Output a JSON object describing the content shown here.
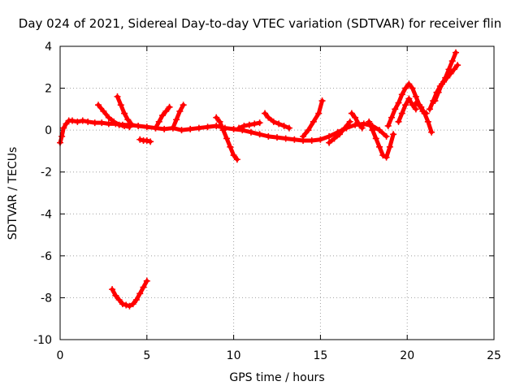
{
  "chart_data": {
    "type": "scatter",
    "title": "Day 024 of 2021, Sidereal Day-to-day VTEC variation (SDTVAR) for receiver flin",
    "xlabel": "GPS time / hours",
    "ylabel": "SDTVAR / TECUs",
    "xlim": [
      0,
      25
    ],
    "ylim": [
      -10,
      4
    ],
    "xticks": [
      0,
      5,
      10,
      15,
      20,
      25
    ],
    "yticks": [
      -10,
      -8,
      -6,
      -4,
      -2,
      0,
      2,
      4
    ],
    "grid": true,
    "marker": "+",
    "color": "#ff0000",
    "series": [
      {
        "x": [
          0.0,
          0.1,
          0.2,
          0.35,
          0.5,
          0.7,
          1.0,
          1.3,
          1.6,
          2.0,
          2.4,
          2.8,
          3.2,
          3.6,
          4.0,
          4.5,
          5.0,
          5.5,
          6.0,
          6.5,
          7.0,
          7.5,
          8.0,
          8.5,
          9.0,
          9.5,
          10.0,
          10.5,
          11.0,
          11.5,
          12.0,
          12.5,
          13.0,
          13.5,
          14.0,
          14.5,
          15.0,
          15.5,
          16.0,
          16.5,
          17.0,
          17.5,
          18.0,
          18.4,
          18.8
        ],
        "y": [
          -0.6,
          -0.3,
          0.1,
          0.3,
          0.45,
          0.45,
          0.4,
          0.45,
          0.4,
          0.35,
          0.35,
          0.3,
          0.3,
          0.25,
          0.25,
          0.2,
          0.15,
          0.1,
          0.05,
          0.1,
          0.0,
          0.05,
          0.1,
          0.15,
          0.2,
          0.1,
          0.05,
          0.0,
          -0.1,
          -0.2,
          -0.3,
          -0.35,
          -0.4,
          -0.45,
          -0.5,
          -0.5,
          -0.45,
          -0.3,
          -0.1,
          0.1,
          0.25,
          0.3,
          0.2,
          0.0,
          -0.3
        ]
      },
      {
        "x": [
          2.2,
          2.5,
          2.8,
          3.1,
          3.4,
          3.7,
          4.0
        ],
        "y": [
          1.2,
          0.9,
          0.6,
          0.4,
          0.25,
          0.2,
          0.15
        ]
      },
      {
        "x": [
          3.3,
          3.5,
          3.7,
          3.9,
          4.1
        ],
        "y": [
          1.6,
          1.2,
          0.8,
          0.5,
          0.3
        ]
      },
      {
        "x": [
          4.6,
          4.8,
          5.0,
          5.2
        ],
        "y": [
          -0.45,
          -0.5,
          -0.5,
          -0.55
        ]
      },
      {
        "x": [
          5.5,
          5.7,
          5.9,
          6.1,
          6.3
        ],
        "y": [
          0.1,
          0.4,
          0.7,
          0.9,
          1.1
        ]
      },
      {
        "x": [
          6.5,
          6.7,
          6.9,
          7.1
        ],
        "y": [
          0.1,
          0.5,
          0.9,
          1.2
        ]
      },
      {
        "x": [
          9.0,
          9.2,
          9.4,
          9.6,
          9.8,
          10.0,
          10.2
        ],
        "y": [
          0.6,
          0.4,
          0.0,
          -0.4,
          -0.8,
          -1.2,
          -1.4
        ]
      },
      {
        "x": [
          10.3,
          10.6,
          10.9,
          11.2,
          11.5
        ],
        "y": [
          0.1,
          0.2,
          0.25,
          0.3,
          0.35
        ]
      },
      {
        "x": [
          11.8,
          12.0,
          12.3,
          12.6,
          12.9,
          13.2
        ],
        "y": [
          0.8,
          0.6,
          0.4,
          0.3,
          0.2,
          0.1
        ]
      },
      {
        "x": [
          14.0,
          14.3,
          14.6,
          14.9,
          15.1
        ],
        "y": [
          -0.3,
          0.0,
          0.4,
          0.8,
          1.4
        ]
      },
      {
        "x": [
          15.5,
          15.8,
          16.1,
          16.4,
          16.7
        ],
        "y": [
          -0.6,
          -0.4,
          -0.2,
          0.1,
          0.4
        ]
      },
      {
        "x": [
          16.8,
          17.0,
          17.2,
          17.4
        ],
        "y": [
          0.8,
          0.6,
          0.3,
          0.1
        ]
      },
      {
        "x": [
          17.8,
          18.0,
          18.2,
          18.4,
          18.6,
          18.8,
          19.0,
          19.2
        ],
        "y": [
          0.4,
          0.0,
          -0.4,
          -0.8,
          -1.2,
          -1.3,
          -0.8,
          -0.2
        ]
      },
      {
        "x": [
          18.9,
          19.1,
          19.3,
          19.5,
          19.7,
          19.9,
          20.1,
          20.3,
          20.5,
          20.7,
          20.9,
          21.1
        ],
        "y": [
          0.2,
          0.6,
          1.0,
          1.3,
          1.7,
          2.0,
          2.2,
          2.0,
          1.6,
          1.2,
          0.9,
          0.8
        ]
      },
      {
        "x": [
          19.5,
          19.7,
          19.9,
          20.1,
          20.3,
          20.5
        ],
        "y": [
          0.4,
          0.8,
          1.2,
          1.5,
          1.2,
          1.0
        ]
      },
      {
        "x": [
          20.5,
          20.8,
          21.0,
          21.2,
          21.4
        ],
        "y": [
          1.3,
          1.1,
          0.8,
          0.4,
          -0.1
        ]
      },
      {
        "x": [
          21.3,
          21.5,
          21.7,
          21.9,
          22.1,
          22.3,
          22.5,
          22.7,
          22.9
        ],
        "y": [
          1.0,
          1.4,
          1.8,
          2.1,
          2.3,
          2.5,
          2.7,
          2.9,
          3.1
        ]
      },
      {
        "x": [
          21.6,
          21.8,
          22.0,
          22.2,
          22.4,
          22.6,
          22.8
        ],
        "y": [
          1.4,
          1.8,
          2.2,
          2.5,
          2.9,
          3.3,
          3.7
        ]
      },
      {
        "x": [
          3.0,
          3.2,
          3.4,
          3.6,
          3.8,
          4.0,
          4.2,
          4.4,
          4.6,
          4.8,
          5.0
        ],
        "y": [
          -7.6,
          -7.9,
          -8.1,
          -8.3,
          -8.35,
          -8.4,
          -8.3,
          -8.1,
          -7.8,
          -7.5,
          -7.2
        ]
      }
    ]
  }
}
